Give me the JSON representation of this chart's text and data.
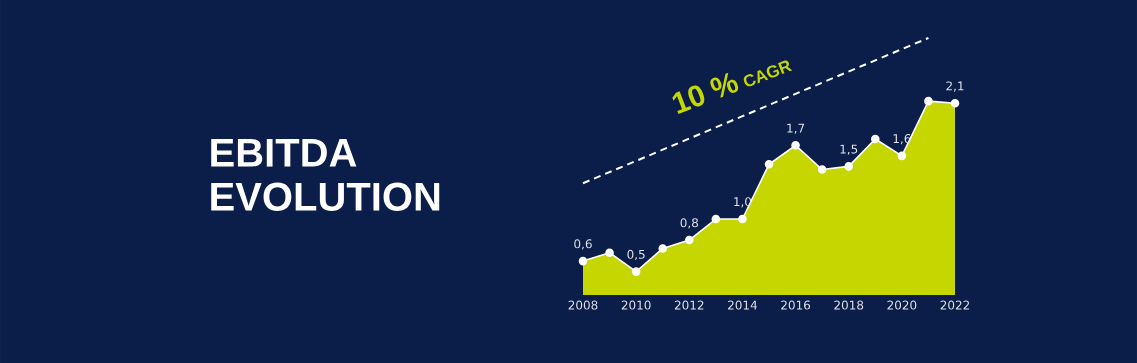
{
  "chart_data": {
    "type": "area",
    "title": "EBITDA EVOLUTION",
    "x": [
      2008,
      2009,
      2010,
      2011,
      2012,
      2013,
      2014,
      2015,
      2016,
      2017,
      2018,
      2019,
      2020,
      2021,
      2022
    ],
    "xlim": [
      2008,
      2022
    ],
    "xticks": [
      2008,
      2010,
      2012,
      2014,
      2016,
      2018,
      2020,
      2022
    ],
    "tick_labels": "x",
    "marker": "circle",
    "series": [
      {
        "type": "area",
        "color": "#c5d600",
        "values": [
          0.6,
          0.68,
          0.5,
          0.72,
          0.8,
          1.0,
          1.0,
          1.52,
          1.7,
          1.47,
          1.5,
          1.76,
          1.6,
          2.12,
          2.1
        ],
        "value_labels": [
          "0,6",
          null,
          "0,5",
          null,
          "0,8",
          null,
          "1,0",
          null,
          "1,7",
          null,
          "1,5",
          null,
          "1,6",
          null,
          "2,1"
        ]
      },
      {
        "type": "line",
        "color": "#ffffff",
        "line_style": "dashed",
        "marker": "none",
        "x": [
          2008,
          2021
        ],
        "values": [
          1.34,
          2.72
        ]
      }
    ],
    "annotations": [
      "10 %",
      "CAGR"
    ]
  }
}
